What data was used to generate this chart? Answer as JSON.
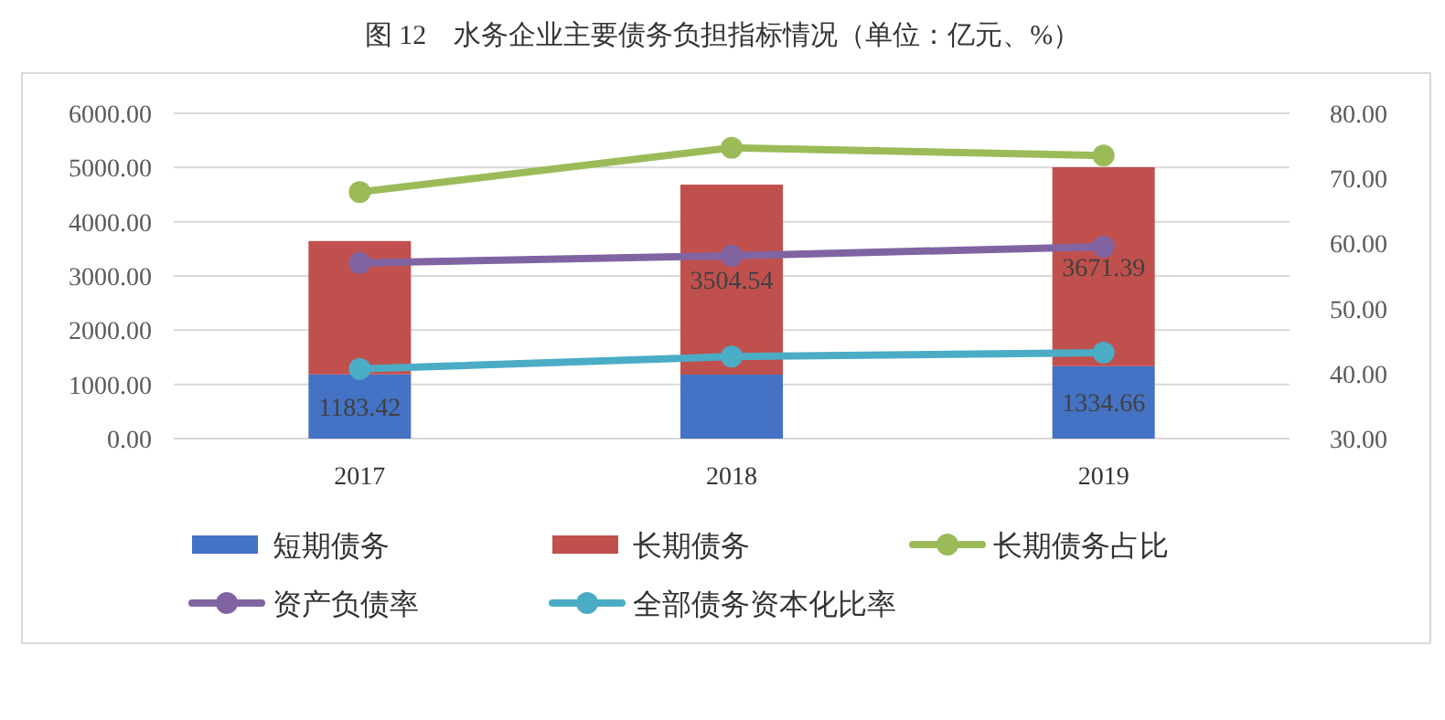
{
  "chart_data": {
    "type": "bar",
    "title": "图 12　水务企业主要债务负担指标情况（单位：亿元、%）",
    "categories": [
      "2017",
      "2018",
      "2019"
    ],
    "stacked": true,
    "legend": "bottom",
    "grid": "y",
    "marker": "circle",
    "ylim": [
      0,
      6000
    ],
    "yticks": [
      {
        "value": 0,
        "label": "0.00"
      },
      {
        "value": 1000,
        "label": "1000.00"
      },
      {
        "value": 2000,
        "label": "2000.00"
      },
      {
        "value": 3000,
        "label": "3000.00"
      },
      {
        "value": 4000,
        "label": "4000.00"
      },
      {
        "value": 5000,
        "label": "5000.00"
      },
      {
        "value": 6000,
        "label": "6000.00"
      }
    ],
    "y2lim": [
      30,
      80
    ],
    "y2ticks": [
      {
        "value": 30,
        "label": "30.00"
      },
      {
        "value": 40,
        "label": "40.00"
      },
      {
        "value": 50,
        "label": "50.00"
      },
      {
        "value": 60,
        "label": "60.00"
      },
      {
        "value": 70,
        "label": "70.00"
      },
      {
        "value": 80,
        "label": "80.00"
      }
    ],
    "series": [
      {
        "name": "短期债务",
        "color": "#4472c4",
        "values": [
          1183.42,
          1180,
          1334.66
        ],
        "value_labels": [
          "1183.42",
          null,
          "1334.66"
        ]
      },
      {
        "name": "长期债务",
        "color": "#c0504d",
        "values": [
          2460,
          3504.54,
          3671.39
        ],
        "value_labels": [
          null,
          "3504.54",
          "3671.39"
        ]
      },
      {
        "name": "长期债务占比",
        "type": "line",
        "axis": "y2",
        "color": "#9bbb59",
        "values": [
          67.9,
          74.7,
          73.5
        ]
      },
      {
        "name": "资产负债率",
        "type": "line",
        "axis": "y2",
        "color": "#8064a2",
        "values": [
          57.0,
          58.1,
          59.5
        ]
      },
      {
        "name": "全部债务资本化比率",
        "type": "line",
        "axis": "y2",
        "color": "#4bacc6",
        "values": [
          40.7,
          42.6,
          43.2
        ]
      }
    ]
  }
}
